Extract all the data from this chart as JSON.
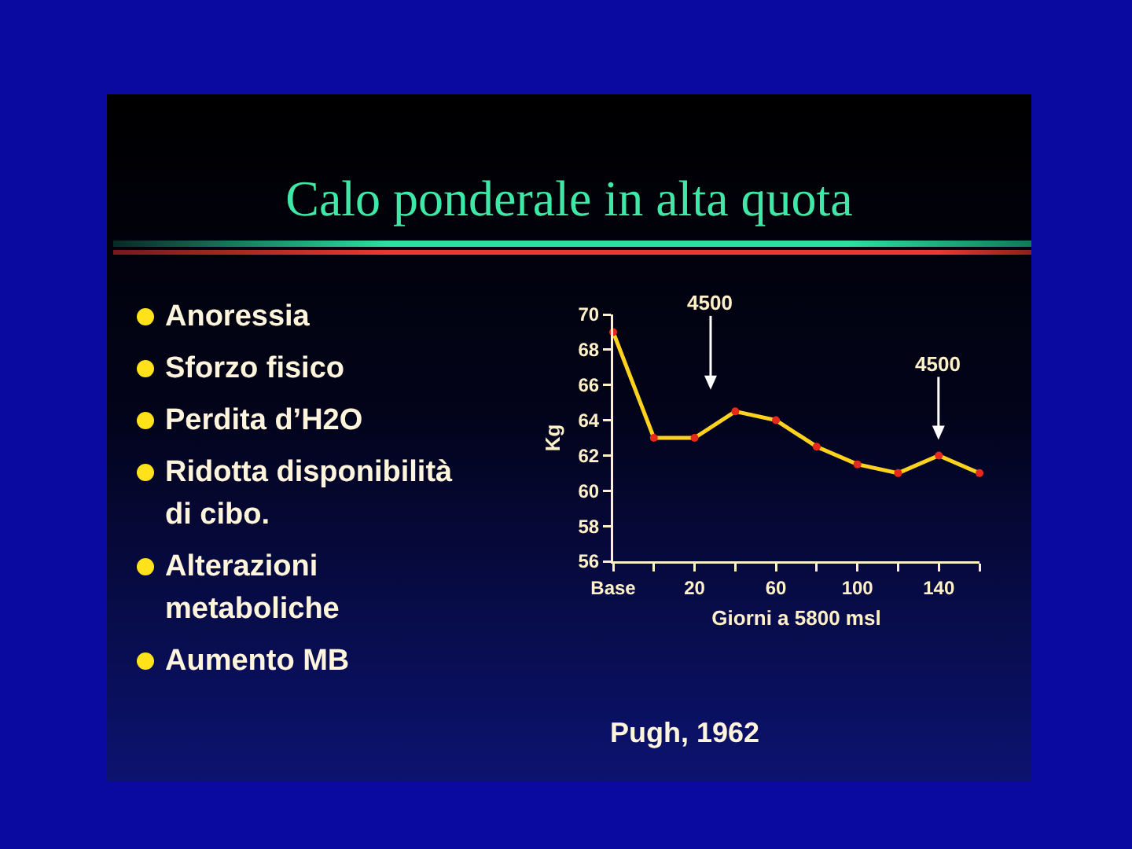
{
  "chart_data": {
    "type": "line",
    "title": "Calo ponderale in alta quota",
    "xlabel": "Giorni a 5800 msl",
    "ylabel": "Kg",
    "x": [
      -20,
      0,
      20,
      40,
      60,
      80,
      100,
      120,
      140,
      160
    ],
    "series": [
      {
        "color": "#ffd21f",
        "colors": [
          "#e8281a",
          "#e8281a",
          "#e8281a",
          "#e8281a",
          "#e8281a",
          "#e8281a",
          "#e8281a",
          "#e8281a",
          "#e8281a",
          "#e8281a"
        ],
        "values": [
          69,
          63,
          63,
          64.5,
          64,
          62.5,
          61.5,
          61,
          62,
          61
        ]
      }
    ],
    "xlim": [
      -20,
      160
    ],
    "xticks": [
      {
        "value": -20,
        "label": "Base"
      },
      {
        "value": 0,
        "label": null
      },
      20,
      {
        "value": 40,
        "label": null
      },
      60,
      {
        "value": 80,
        "label": null
      },
      100,
      {
        "value": 120,
        "label": null
      },
      140,
      {
        "value": 160,
        "label": null
      }
    ],
    "ylim": [
      56,
      70
    ],
    "yticks": [
      56,
      58,
      60,
      62,
      64,
      66,
      68,
      70
    ],
    "grid": false,
    "marker": "circle",
    "line_style": "solid",
    "annotations": [
      "4500",
      "4500",
      "Anoressia",
      "Sforzo fisico",
      "Perdita d’H2O",
      "Ridotta disponibilità di cibo.",
      "Alterazioni metaboliche",
      "Aumento MB",
      "Pugh, 1962"
    ]
  }
}
